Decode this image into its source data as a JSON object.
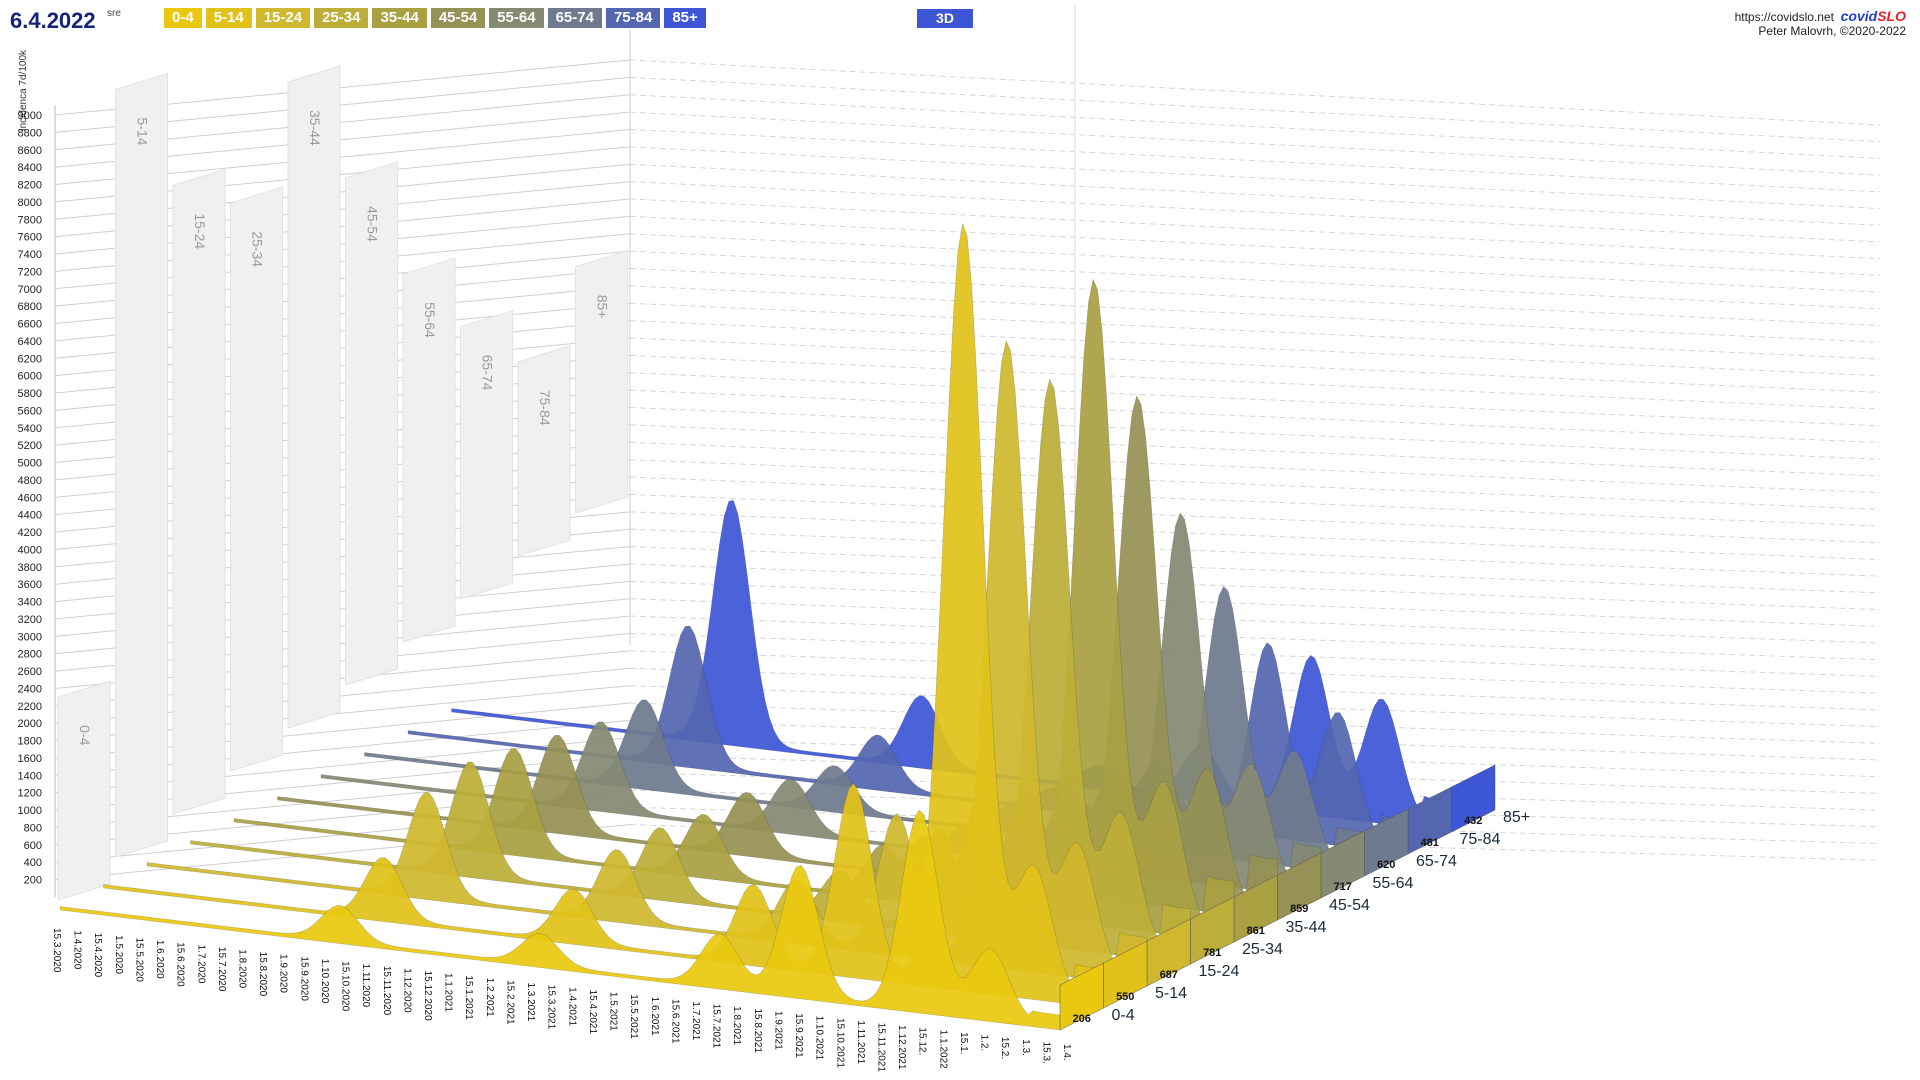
{
  "header": {
    "date": "6.4.2022",
    "weekday": "sre",
    "mode_button": "3D",
    "site_url": "https://covidslo.net",
    "brand_part1": "covid",
    "brand_part2": "SLO",
    "credit": "Peter Malovrh, ©2020-2022"
  },
  "legend": [
    {
      "label": "0-4",
      "color": "#e9c80f"
    },
    {
      "label": "5-14",
      "color": "#e1c21a"
    },
    {
      "label": "15-24",
      "color": "#d0b82e"
    },
    {
      "label": "25-34",
      "color": "#bcae38"
    },
    {
      "label": "35-44",
      "color": "#a9a042"
    },
    {
      "label": "45-54",
      "color": "#969154"
    },
    {
      "label": "55-64",
      "color": "#858a72"
    },
    {
      "label": "65-74",
      "color": "#6f7a8e"
    },
    {
      "label": "75-84",
      "color": "#5466b0"
    },
    {
      "label": "85+",
      "color": "#3d56d6"
    }
  ],
  "chart_data": {
    "type": "area",
    "title": "",
    "ylabel": "Incidenca 7d/100k",
    "ylim": [
      0,
      9000
    ],
    "y_ticks": [
      200,
      400,
      600,
      800,
      1000,
      1200,
      1400,
      1600,
      1800,
      2000,
      2200,
      2400,
      2600,
      2800,
      3000,
      3200,
      3400,
      3600,
      3800,
      4000,
      4200,
      4400,
      4600,
      4800,
      5000,
      5200,
      5400,
      5600,
      5800,
      6000,
      6200,
      6400,
      6600,
      6800,
      7000,
      7200,
      7400,
      7600,
      7800,
      8000,
      8200,
      8400,
      8600,
      8800,
      9000
    ],
    "x_tick_labels": [
      "15.3.2020",
      "1.4.2020",
      "15.4.2020",
      "1.5.2020",
      "15.5.2020",
      "1.6.2020",
      "15.6.2020",
      "1.7.2020",
      "15.7.2020",
      "1.8.2020",
      "15.8.2020",
      "1.9.2020",
      "15.9.2020",
      "1.10.2020",
      "15.10.2020",
      "1.11.2020",
      "15.11.2020",
      "1.12.2020",
      "15.12.2020",
      "1.1.2021",
      "15.1.2021",
      "1.2.2021",
      "15.2.2021",
      "1.3.2021",
      "15.3.2021",
      "1.4.2021",
      "15.4.2021",
      "1.5.2021",
      "15.5.2021",
      "1.6.2021",
      "15.6.2021",
      "1.7.2021",
      "15.7.2021",
      "1.8.2021",
      "15.8.2021",
      "1.9.2021",
      "15.9.2021",
      "1.10.2021",
      "15.10.2021",
      "1.11.2021",
      "15.11.2021",
      "1.12.2021",
      "15.12.",
      "1.1.2022",
      "15.1.",
      "1.2.",
      "15.2.",
      "1.3.",
      "15.3.",
      "1.4."
    ],
    "categories": [
      "0-4",
      "5-14",
      "15-24",
      "25-34",
      "35-44",
      "45-54",
      "55-64",
      "65-74",
      "75-84",
      "85+"
    ],
    "series": [
      {
        "name": "0-4",
        "color": "#e9c80f",
        "current": 206,
        "peaks": [
          {
            "x": 0.28,
            "v": 400
          },
          {
            "x": 0.48,
            "v": 350
          },
          {
            "x": 0.66,
            "v": 600
          },
          {
            "x": 0.74,
            "v": 1500
          },
          {
            "x": 0.86,
            "v": 2300
          },
          {
            "x": 0.93,
            "v": 800
          }
        ]
      },
      {
        "name": "5-14",
        "color": "#e1c21a",
        "current": 550,
        "peaks": [
          {
            "x": 0.28,
            "v": 700
          },
          {
            "x": 0.47,
            "v": 600
          },
          {
            "x": 0.65,
            "v": 900
          },
          {
            "x": 0.75,
            "v": 2200
          },
          {
            "x": 0.86,
            "v": 8800
          },
          {
            "x": 0.93,
            "v": 1500
          }
        ]
      },
      {
        "name": "15-24",
        "color": "#d0b82e",
        "current": 687,
        "peaks": [
          {
            "x": 0.28,
            "v": 1200
          },
          {
            "x": 0.47,
            "v": 800
          },
          {
            "x": 0.65,
            "v": 700
          },
          {
            "x": 0.75,
            "v": 1600
          },
          {
            "x": 0.86,
            "v": 7200
          },
          {
            "x": 0.93,
            "v": 1500
          }
        ]
      },
      {
        "name": "25-34",
        "color": "#bcae38",
        "current": 781,
        "peaks": [
          {
            "x": 0.28,
            "v": 1300
          },
          {
            "x": 0.47,
            "v": 800
          },
          {
            "x": 0.65,
            "v": 550
          },
          {
            "x": 0.75,
            "v": 1200
          },
          {
            "x": 0.86,
            "v": 6500
          },
          {
            "x": 0.93,
            "v": 1600
          }
        ]
      },
      {
        "name": "35-44",
        "color": "#a9a042",
        "current": 861,
        "peaks": [
          {
            "x": 0.28,
            "v": 1200
          },
          {
            "x": 0.47,
            "v": 700
          },
          {
            "x": 0.65,
            "v": 600
          },
          {
            "x": 0.75,
            "v": 1400
          },
          {
            "x": 0.86,
            "v": 7400
          },
          {
            "x": 0.93,
            "v": 1700
          }
        ]
      },
      {
        "name": "45-54",
        "color": "#969154",
        "current": 859,
        "peaks": [
          {
            "x": 0.28,
            "v": 1100
          },
          {
            "x": 0.47,
            "v": 700
          },
          {
            "x": 0.65,
            "v": 450
          },
          {
            "x": 0.75,
            "v": 1100
          },
          {
            "x": 0.86,
            "v": 5800
          },
          {
            "x": 0.93,
            "v": 1600
          }
        ]
      },
      {
        "name": "55-64",
        "color": "#858a72",
        "current": 717,
        "peaks": [
          {
            "x": 0.28,
            "v": 1000
          },
          {
            "x": 0.47,
            "v": 600
          },
          {
            "x": 0.65,
            "v": 350
          },
          {
            "x": 0.75,
            "v": 900
          },
          {
            "x": 0.86,
            "v": 4200
          },
          {
            "x": 0.93,
            "v": 1400
          }
        ]
      },
      {
        "name": "65-74",
        "color": "#6f7a8e",
        "current": 620,
        "peaks": [
          {
            "x": 0.28,
            "v": 1000
          },
          {
            "x": 0.47,
            "v": 500
          },
          {
            "x": 0.65,
            "v": 300
          },
          {
            "x": 0.75,
            "v": 800
          },
          {
            "x": 0.86,
            "v": 3100
          },
          {
            "x": 0.93,
            "v": 1300
          }
        ]
      },
      {
        "name": "75-84",
        "color": "#5466b0",
        "current": 481,
        "peaks": [
          {
            "x": 0.28,
            "v": 1600
          },
          {
            "x": 0.47,
            "v": 600
          },
          {
            "x": 0.65,
            "v": 250
          },
          {
            "x": 0.75,
            "v": 700
          },
          {
            "x": 0.86,
            "v": 2200
          },
          {
            "x": 0.93,
            "v": 1500
          }
        ]
      },
      {
        "name": "85+",
        "color": "#3d56d6",
        "current": 432,
        "peaks": [
          {
            "x": 0.28,
            "v": 2800
          },
          {
            "x": 0.47,
            "v": 800
          },
          {
            "x": 0.65,
            "v": 250
          },
          {
            "x": 0.75,
            "v": 600
          },
          {
            "x": 0.86,
            "v": 1800
          },
          {
            "x": 0.93,
            "v": 1400
          }
        ]
      }
    ],
    "max_incidence": [
      {
        "group": "0-4",
        "value": 2300
      },
      {
        "group": "5-14",
        "value": 8800
      },
      {
        "group": "15-24",
        "value": 7200
      },
      {
        "group": "25-34",
        "value": 6500
      },
      {
        "group": "35-44",
        "value": 7400
      },
      {
        "group": "45-54",
        "value": 5800
      },
      {
        "group": "55-64",
        "value": 4200
      },
      {
        "group": "65-74",
        "value": 3100
      },
      {
        "group": "75-84",
        "value": 2200
      },
      {
        "group": "85+",
        "value": 2800
      }
    ],
    "grid": true,
    "legend_position": "top-left"
  }
}
